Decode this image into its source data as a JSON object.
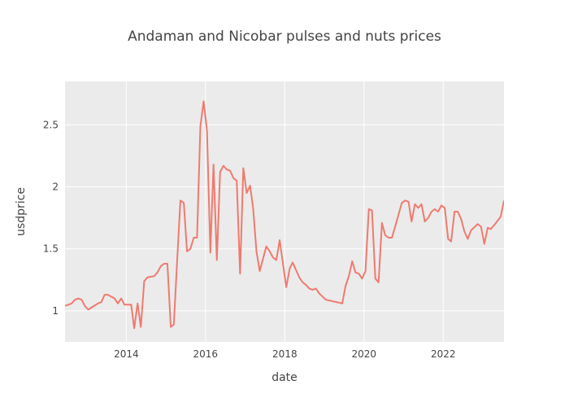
{
  "chart_data": {
    "type": "line",
    "title": "Andaman and Nicobar pulses and nuts prices",
    "xlabel": "date",
    "ylabel": "usdprice",
    "x_ticks": [
      "2014",
      "2016",
      "2018",
      "2020",
      "2022"
    ],
    "y_ticks": [
      "1",
      "1.5",
      "2",
      "2.5"
    ],
    "xlim": [
      "2012-06-15",
      "2023-07-15"
    ],
    "ylim": [
      0.75,
      2.85
    ],
    "grid": true,
    "legend": "none",
    "colors": {
      "line": "#ef7a6f",
      "plot_bg": "#ebebeb",
      "grid": "#ffffff"
    },
    "series": [
      {
        "x": [
          "2012-06-15",
          "2012-08-15",
          "2012-09-15",
          "2012-10-15",
          "2012-11-15",
          "2012-12-15",
          "2013-01-15",
          "2013-04-15",
          "2013-05-15",
          "2013-06-15",
          "2013-07-15",
          "2013-09-15",
          "2013-10-15",
          "2013-11-15",
          "2013-12-15",
          "2014-01-15",
          "2014-02-15",
          "2014-03-15",
          "2014-04-15",
          "2014-05-15",
          "2014-06-15",
          "2014-07-15",
          "2014-09-15",
          "2014-10-15",
          "2014-11-15",
          "2014-12-15",
          "2015-01-15",
          "2015-02-15",
          "2015-03-15",
          "2015-04-15",
          "2015-05-15",
          "2015-06-15",
          "2015-07-15",
          "2015-08-15",
          "2015-09-15",
          "2015-10-15",
          "2015-11-15",
          "2015-12-15",
          "2016-01-15",
          "2016-02-15",
          "2016-03-15",
          "2016-04-15",
          "2016-05-15",
          "2016-06-15",
          "2016-07-15",
          "2016-08-15",
          "2016-09-15",
          "2016-10-15",
          "2016-11-15",
          "2016-12-15",
          "2017-01-15",
          "2017-02-15",
          "2017-03-15",
          "2017-04-15",
          "2017-05-15",
          "2017-07-15",
          "2017-08-15",
          "2017-09-15",
          "2017-10-15",
          "2017-11-15",
          "2018-01-15",
          "2018-02-15",
          "2018-03-15",
          "2018-05-15",
          "2018-06-15",
          "2018-07-15",
          "2018-08-15",
          "2018-09-15",
          "2018-10-15",
          "2018-11-15",
          "2019-01-15",
          "2019-06-15",
          "2019-07-15",
          "2019-08-15",
          "2019-09-15",
          "2019-10-15",
          "2019-11-15",
          "2019-12-15",
          "2020-01-15",
          "2020-02-15",
          "2020-03-15",
          "2020-04-15",
          "2020-05-15",
          "2020-06-15",
          "2020-07-15",
          "2020-08-15",
          "2020-09-15",
          "2020-10-15",
          "2020-12-15",
          "2021-01-15",
          "2021-02-15",
          "2021-03-15",
          "2021-04-15",
          "2021-05-15",
          "2021-06-15",
          "2021-07-15",
          "2021-08-15",
          "2021-09-15",
          "2021-10-15",
          "2021-11-15",
          "2021-12-15",
          "2022-01-15",
          "2022-02-15",
          "2022-03-15",
          "2022-04-15",
          "2022-05-15",
          "2022-06-15",
          "2022-07-15",
          "2022-08-15",
          "2022-09-15",
          "2022-11-15",
          "2022-12-15",
          "2023-01-15",
          "2023-02-15",
          "2023-03-15",
          "2023-04-15",
          "2023-06-15",
          "2023-07-15"
        ],
        "y": [
          1.04,
          1.06,
          1.09,
          1.1,
          1.09,
          1.04,
          1.01,
          1.06,
          1.07,
          1.13,
          1.13,
          1.1,
          1.06,
          1.1,
          1.05,
          1.05,
          1.05,
          0.86,
          1.06,
          0.87,
          1.24,
          1.27,
          1.28,
          1.31,
          1.36,
          1.38,
          1.38,
          0.87,
          0.89,
          1.41,
          1.89,
          1.87,
          1.48,
          1.5,
          1.59,
          1.59,
          2.49,
          2.69,
          2.45,
          1.47,
          2.18,
          1.41,
          2.12,
          2.17,
          2.14,
          2.13,
          2.07,
          2.05,
          1.3,
          2.15,
          1.95,
          2.01,
          1.83,
          1.48,
          1.32,
          1.52,
          1.48,
          1.43,
          1.41,
          1.57,
          1.19,
          1.34,
          1.39,
          1.27,
          1.23,
          1.21,
          1.18,
          1.17,
          1.18,
          1.14,
          1.09,
          1.06,
          1.2,
          1.28,
          1.4,
          1.31,
          1.3,
          1.26,
          1.32,
          1.82,
          1.81,
          1.26,
          1.23,
          1.71,
          1.61,
          1.59,
          1.59,
          1.68,
          1.87,
          1.89,
          1.88,
          1.72,
          1.86,
          1.83,
          1.86,
          1.72,
          1.75,
          1.8,
          1.82,
          1.8,
          1.85,
          1.83,
          1.58,
          1.56,
          1.8,
          1.8,
          1.74,
          1.64,
          1.58,
          1.65,
          1.7,
          1.68,
          1.54,
          1.67,
          1.66,
          1.69,
          1.76,
          1.89
        ]
      }
    ]
  }
}
